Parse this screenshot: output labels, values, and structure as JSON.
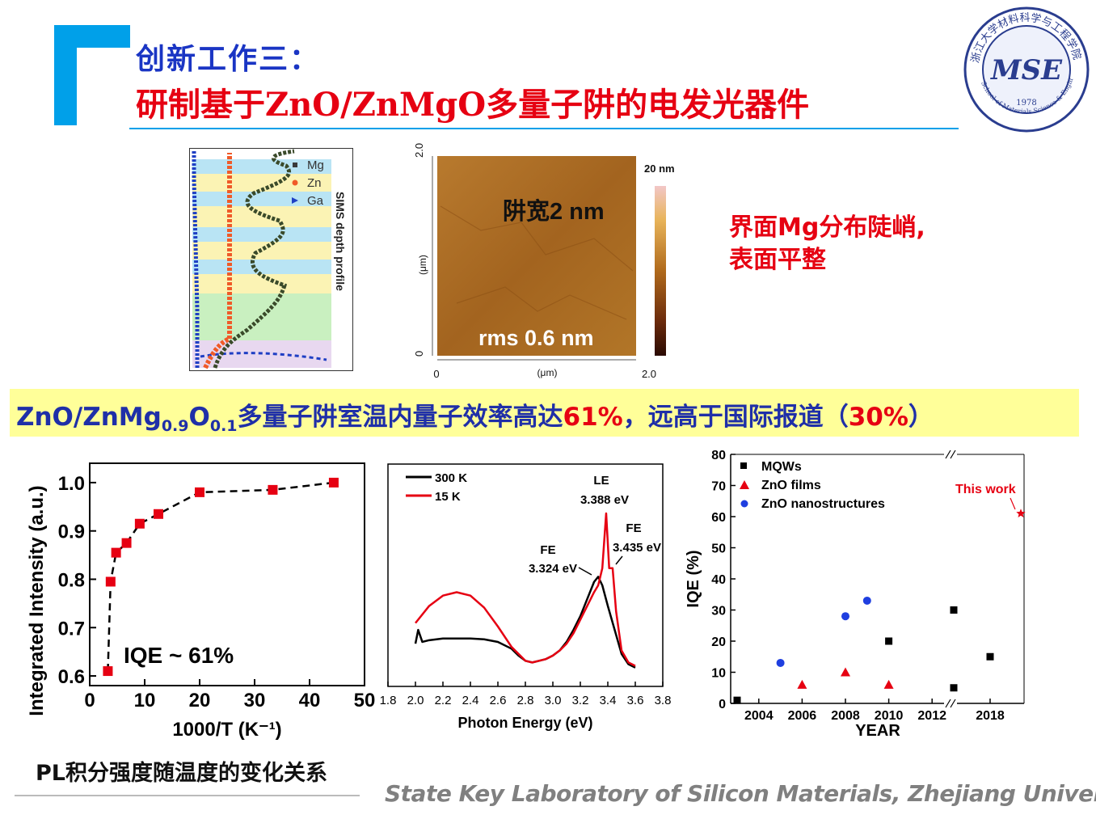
{
  "title": {
    "line1": "创新工作三：",
    "line2": "研制基于ZnO/ZnMgO多量子阱的电发光器件"
  },
  "logo": {
    "ring_text": "浙江大学材料科学与工程学院",
    "ring_text_en": "School of Materials Science & Engineering, Zhejiang Univ.",
    "mark": "MSE",
    "year": "1978"
  },
  "sims": {
    "legend": [
      "Mg",
      "Zn",
      "Ga"
    ],
    "side_label": "SIMS depth profile",
    "colors": {
      "mg": "#3a3a3a",
      "zn": "#f05a28",
      "ga": "#1f3fc4"
    }
  },
  "afm": {
    "label_well": "阱宽2 nm",
    "label_rms": "rms 0.6 nm",
    "scale_max": "20 nm",
    "x_ticks": [
      "0",
      "2.0"
    ],
    "y_ticks": [
      "0",
      "2.0"
    ],
    "x_unit": "(μm)",
    "y_unit": "(μm)"
  },
  "note": {
    "line1": "界面Mg分布陡峭,",
    "line2": "表面平整"
  },
  "banner": {
    "part1": "ZnO/ZnMg",
    "sub1": "0.9",
    "part2": "O",
    "sub2": "0.1",
    "part3": "多量子阱室温内量子效率高达",
    "highlight1": "61%",
    "part4": "，远高于国际报道（",
    "highlight2": "30%",
    "part5": "）"
  },
  "caption": "PL积分强度随温度的变化关系",
  "footer": "State Key Laboratory of Silicon Materials, Zhejiang University",
  "chart_data": [
    {
      "type": "line",
      "xlabel": "1000/T (K⁻¹)",
      "ylabel": "Integrated Intensity (a.u.)",
      "annotation": "IQE ~ 61%",
      "xlim": [
        0,
        50
      ],
      "ylim": [
        0.58,
        1.04
      ],
      "x_ticks": [
        "0",
        "10",
        "20",
        "30",
        "40",
        "50"
      ],
      "y_ticks": [
        "0.6",
        "0.7",
        "0.8",
        "0.9",
        "1.0"
      ],
      "x": [
        3.3,
        3.8,
        4.8,
        6.7,
        9.1,
        12.5,
        20.0,
        33.3,
        44.4
      ],
      "y": [
        0.61,
        0.795,
        0.855,
        0.875,
        0.915,
        0.935,
        0.98,
        0.985,
        1.0
      ],
      "color": "#e60012"
    },
    {
      "type": "line",
      "xlabel": "Photon Energy (eV)",
      "xlim": [
        1.8,
        3.8
      ],
      "x_ticks": [
        "1.8",
        "2.0",
        "2.2",
        "2.4",
        "2.6",
        "2.8",
        "3.0",
        "3.2",
        "3.4",
        "3.6",
        "3.8"
      ],
      "annotations": [
        "LE",
        "3.388 eV",
        "FE",
        "3.324 eV",
        "FE",
        "3.435 eV"
      ],
      "series": [
        {
          "name": "300 K",
          "color": "#000000",
          "x": [
            2.0,
            2.02,
            2.05,
            2.1,
            2.2,
            2.3,
            2.4,
            2.5,
            2.6,
            2.7,
            2.75,
            2.8,
            2.85,
            2.9,
            2.95,
            3.0,
            3.05,
            3.1,
            3.15,
            3.2,
            3.25,
            3.3,
            3.33,
            3.36,
            3.4,
            3.45,
            3.5,
            3.55,
            3.6
          ],
          "y": [
            0.16,
            0.24,
            0.17,
            0.18,
            0.19,
            0.19,
            0.19,
            0.185,
            0.17,
            0.13,
            0.09,
            0.06,
            0.05,
            0.06,
            0.07,
            0.09,
            0.12,
            0.17,
            0.24,
            0.32,
            0.42,
            0.52,
            0.55,
            0.5,
            0.38,
            0.24,
            0.1,
            0.04,
            0.02
          ]
        },
        {
          "name": "15 K",
          "color": "#e60012",
          "x": [
            2.0,
            2.1,
            2.2,
            2.3,
            2.4,
            2.5,
            2.6,
            2.7,
            2.8,
            2.85,
            2.9,
            2.95,
            3.0,
            3.05,
            3.1,
            3.15,
            3.2,
            3.25,
            3.3,
            3.33,
            3.36,
            3.388,
            3.41,
            3.435,
            3.46,
            3.5,
            3.55,
            3.6
          ],
          "y": [
            0.28,
            0.38,
            0.44,
            0.46,
            0.44,
            0.37,
            0.26,
            0.14,
            0.06,
            0.05,
            0.06,
            0.07,
            0.09,
            0.12,
            0.16,
            0.22,
            0.3,
            0.38,
            0.46,
            0.5,
            0.6,
            0.92,
            0.6,
            0.6,
            0.35,
            0.12,
            0.05,
            0.03
          ]
        }
      ]
    },
    {
      "type": "scatter",
      "xlabel": "YEAR",
      "ylabel": "IQE (%)",
      "ylim": [
        0,
        80
      ],
      "x_ticks": [
        "2004",
        "2006",
        "2008",
        "2010",
        "2012",
        "2018"
      ],
      "y_ticks": [
        "0",
        "10",
        "20",
        "30",
        "40",
        "50",
        "60",
        "70",
        "80"
      ],
      "legend_position": "top-left",
      "series": [
        {
          "name": "MQWs",
          "color": "#000000",
          "marker": "square",
          "points": [
            [
              2003,
              1
            ],
            [
              2010,
              20
            ],
            [
              2013,
              30
            ],
            [
              2013,
              5
            ],
            [
              2018,
              15
            ]
          ]
        },
        {
          "name": "ZnO films",
          "color": "#e60012",
          "marker": "triangle",
          "points": [
            [
              2006,
              6
            ],
            [
              2008,
              10
            ],
            [
              2010,
              6
            ]
          ]
        },
        {
          "name": "ZnO nanostructures",
          "color": "#1f3fe0",
          "marker": "circle",
          "points": [
            [
              2005,
              13
            ],
            [
              2008,
              28
            ],
            [
              2009,
              33
            ]
          ]
        },
        {
          "name": "This work",
          "color": "#e60012",
          "marker": "star",
          "points": [
            [
              2019,
              61
            ]
          ]
        }
      ]
    }
  ]
}
